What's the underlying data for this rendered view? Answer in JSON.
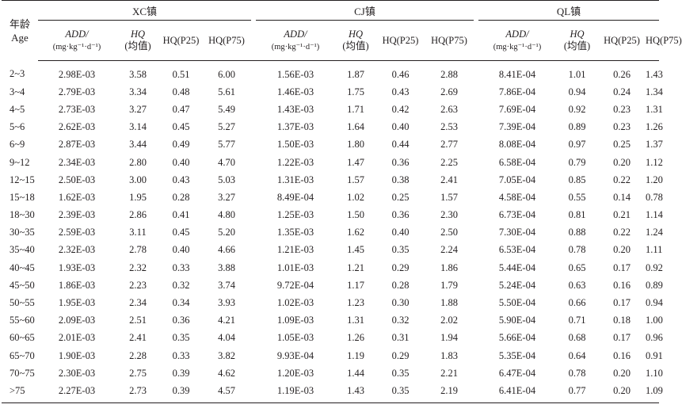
{
  "header": {
    "age_label_cn": "年龄",
    "age_label_en": "Age",
    "groups": [
      "XC镇",
      "CJ镇",
      "QL镇"
    ],
    "add_label": "ADD/",
    "add_unit": "(mg·kg⁻¹·d⁻¹)",
    "hq_label": "HQ",
    "hq_mean": "(均值)",
    "hq_p25": "HQ(P25)",
    "hq_p75": "HQ(P75)"
  },
  "rows": [
    {
      "age": "2~3",
      "xc": [
        "2.98E-03",
        "3.58",
        "0.51",
        "6.00"
      ],
      "cj": [
        "1.56E-03",
        "1.87",
        "0.46",
        "2.88"
      ],
      "ql": [
        "8.41E-04",
        "1.01",
        "0.26",
        "1.43"
      ]
    },
    {
      "age": "3~4",
      "xc": [
        "2.79E-03",
        "3.34",
        "0.48",
        "5.61"
      ],
      "cj": [
        "1.46E-03",
        "1.75",
        "0.43",
        "2.69"
      ],
      "ql": [
        "7.86E-04",
        "0.94",
        "0.24",
        "1.34"
      ]
    },
    {
      "age": "4~5",
      "xc": [
        "2.73E-03",
        "3.27",
        "0.47",
        "5.49"
      ],
      "cj": [
        "1.43E-03",
        "1.71",
        "0.42",
        "2.63"
      ],
      "ql": [
        "7.69E-04",
        "0.92",
        "0.23",
        "1.31"
      ]
    },
    {
      "age": "5~6",
      "xc": [
        "2.62E-03",
        "3.14",
        "0.45",
        "5.27"
      ],
      "cj": [
        "1.37E-03",
        "1.64",
        "0.40",
        "2.53"
      ],
      "ql": [
        "7.39E-04",
        "0.89",
        "0.23",
        "1.26"
      ]
    },
    {
      "age": "6~9",
      "xc": [
        "2.87E-03",
        "3.44",
        "0.49",
        "5.77"
      ],
      "cj": [
        "1.50E-03",
        "1.80",
        "0.44",
        "2.77"
      ],
      "ql": [
        "8.08E-04",
        "0.97",
        "0.25",
        "1.37"
      ]
    },
    {
      "age": "9~12",
      "xc": [
        "2.34E-03",
        "2.80",
        "0.40",
        "4.70"
      ],
      "cj": [
        "1.22E-03",
        "1.47",
        "0.36",
        "2.25"
      ],
      "ql": [
        "6.58E-04",
        "0.79",
        "0.20",
        "1.12"
      ]
    },
    {
      "age": "12~15",
      "xc": [
        "2.50E-03",
        "3.00",
        "0.43",
        "5.03"
      ],
      "cj": [
        "1.31E-03",
        "1.57",
        "0.38",
        "2.41"
      ],
      "ql": [
        "7.05E-04",
        "0.85",
        "0.22",
        "1.20"
      ]
    },
    {
      "age": "15~18",
      "xc": [
        "1.62E-03",
        "1.95",
        "0.28",
        "3.27"
      ],
      "cj": [
        "8.49E-04",
        "1.02",
        "0.25",
        "1.57"
      ],
      "ql": [
        "4.58E-04",
        "0.55",
        "0.14",
        "0.78"
      ]
    },
    {
      "age": "18~30",
      "xc": [
        "2.39E-03",
        "2.86",
        "0.41",
        "4.80"
      ],
      "cj": [
        "1.25E-03",
        "1.50",
        "0.36",
        "2.30"
      ],
      "ql": [
        "6.73E-04",
        "0.81",
        "0.21",
        "1.14"
      ]
    },
    {
      "age": "30~35",
      "xc": [
        "2.59E-03",
        "3.11",
        "0.45",
        "5.20"
      ],
      "cj": [
        "1.35E-03",
        "1.62",
        "0.40",
        "2.50"
      ],
      "ql": [
        "7.30E-04",
        "0.88",
        "0.22",
        "1.24"
      ]
    },
    {
      "age": "35~40",
      "xc": [
        "2.32E-03",
        "2.78",
        "0.40",
        "4.66"
      ],
      "cj": [
        "1.21E-03",
        "1.45",
        "0.35",
        "2.24"
      ],
      "ql": [
        "6.53E-04",
        "0.78",
        "0.20",
        "1.11"
      ]
    },
    {
      "age": "40~45",
      "xc": [
        "1.93E-03",
        "2.32",
        "0.33",
        "3.88"
      ],
      "cj": [
        "1.01E-03",
        "1.21",
        "0.29",
        "1.86"
      ],
      "ql": [
        "5.44E-04",
        "0.65",
        "0.17",
        "0.92"
      ]
    },
    {
      "age": "45~50",
      "xc": [
        "1.86E-03",
        "2.23",
        "0.32",
        "3.74"
      ],
      "cj": [
        "9.72E-04",
        "1.17",
        "0.28",
        "1.79"
      ],
      "ql": [
        "5.24E-04",
        "0.63",
        "0.16",
        "0.89"
      ]
    },
    {
      "age": "50~55",
      "xc": [
        "1.95E-03",
        "2.34",
        "0.34",
        "3.93"
      ],
      "cj": [
        "1.02E-03",
        "1.23",
        "0.30",
        "1.88"
      ],
      "ql": [
        "5.50E-04",
        "0.66",
        "0.17",
        "0.94"
      ]
    },
    {
      "age": "55~60",
      "xc": [
        "2.09E-03",
        "2.51",
        "0.36",
        "4.21"
      ],
      "cj": [
        "1.09E-03",
        "1.31",
        "0.32",
        "2.02"
      ],
      "ql": [
        "5.90E-04",
        "0.71",
        "0.18",
        "1.00"
      ]
    },
    {
      "age": "60~65",
      "xc": [
        "2.01E-03",
        "2.41",
        "0.35",
        "4.04"
      ],
      "cj": [
        "1.05E-03",
        "1.26",
        "0.31",
        "1.94"
      ],
      "ql": [
        "5.66E-04",
        "0.68",
        "0.17",
        "0.96"
      ]
    },
    {
      "age": "65~70",
      "xc": [
        "1.90E-03",
        "2.28",
        "0.33",
        "3.82"
      ],
      "cj": [
        "9.93E-04",
        "1.19",
        "0.29",
        "1.83"
      ],
      "ql": [
        "5.35E-04",
        "0.64",
        "0.16",
        "0.91"
      ]
    },
    {
      "age": "70~75",
      "xc": [
        "2.30E-03",
        "2.75",
        "0.39",
        "4.62"
      ],
      "cj": [
        "1.20E-03",
        "1.44",
        "0.35",
        "2.21"
      ],
      "ql": [
        "6.47E-04",
        "0.78",
        "0.20",
        "1.10"
      ]
    },
    {
      "age": ">75",
      "xc": [
        "2.27E-03",
        "2.73",
        "0.39",
        "4.57"
      ],
      "cj": [
        "1.19E-03",
        "1.43",
        "0.35",
        "2.19"
      ],
      "ql": [
        "6.41E-04",
        "0.77",
        "0.20",
        "1.09"
      ]
    }
  ]
}
